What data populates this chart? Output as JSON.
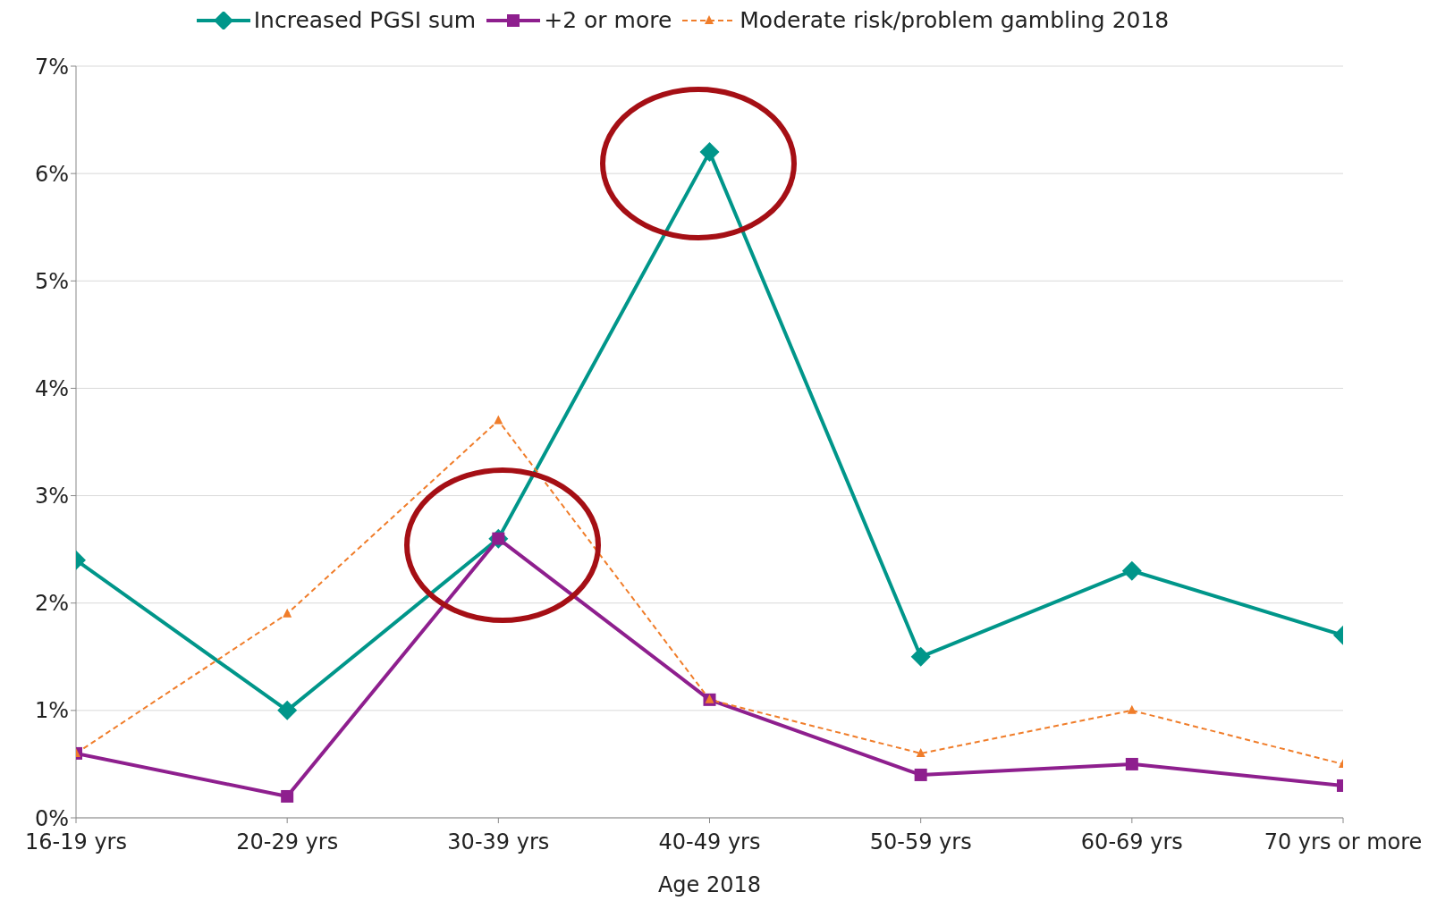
{
  "chart_data": {
    "type": "line",
    "xlabel": "Age 2018",
    "categories": [
      "16-19 yrs",
      "20-29 yrs",
      "30-39 yrs",
      "40-49 yrs",
      "50-59 yrs",
      "60-69 yrs",
      "70 yrs or more"
    ],
    "series": [
      {
        "name": "Increased PGSI sum",
        "color": "#00968a",
        "marker": "diamond",
        "line_style": "solid",
        "values": [
          2.4,
          1.0,
          2.6,
          6.2,
          1.5,
          2.3,
          1.7
        ]
      },
      {
        "name": "+2 or more",
        "color": "#8e1f8e",
        "marker": "square",
        "line_style": "solid",
        "values": [
          0.6,
          0.2,
          2.6,
          1.1,
          0.4,
          0.5,
          0.3
        ]
      },
      {
        "name": "Moderate risk/problem gambling 2018",
        "color": "#f07d2a",
        "marker": "triangle",
        "line_style": "dashed",
        "values": [
          0.6,
          1.9,
          3.7,
          1.1,
          0.6,
          1.0,
          0.5
        ]
      }
    ],
    "ylim": [
      0,
      7
    ],
    "yticks": [
      {
        "value": 0,
        "label": "0%"
      },
      {
        "value": 1,
        "label": "1%"
      },
      {
        "value": 2,
        "label": "2%"
      },
      {
        "value": 3,
        "label": "3%"
      },
      {
        "value": 4,
        "label": "4%"
      },
      {
        "value": 5,
        "label": "5%"
      },
      {
        "value": 6,
        "label": "6%"
      },
      {
        "value": 7,
        "label": "7%"
      }
    ],
    "grid": "y",
    "legend": "top"
  }
}
